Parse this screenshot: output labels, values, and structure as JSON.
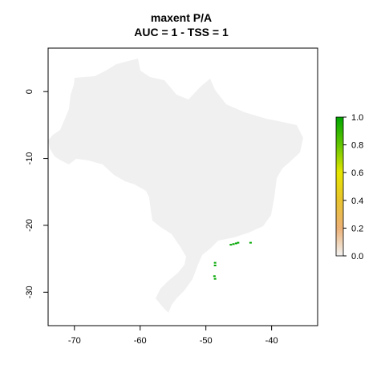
{
  "title": {
    "line1": "maxent P/A",
    "line2": "AUC = 1 - TSS = 1"
  },
  "map": {
    "x_range": [
      -74,
      -33
    ],
    "y_range": [
      -35,
      6.5
    ],
    "x_ticks": [
      -70,
      -60,
      -50,
      -40
    ],
    "y_ticks": [
      0,
      -10,
      -20,
      -30
    ],
    "x_tick_labels": [
      "-70",
      "-60",
      "-50",
      "-40"
    ],
    "y_tick_labels": [
      "0",
      "-10",
      "-20",
      "-30"
    ],
    "country_fill": "#f0f0f0",
    "presence_color": "#00a600",
    "presence_cells": [
      [
        -46.2,
        -22.9
      ],
      [
        -45.8,
        -22.8
      ],
      [
        -45.4,
        -22.7
      ],
      [
        -45.1,
        -22.6
      ],
      [
        -43.2,
        -22.6
      ],
      [
        -48.6,
        -25.6
      ],
      [
        -48.6,
        -26.0
      ],
      [
        -48.7,
        -27.6
      ],
      [
        -48.6,
        -28.0
      ]
    ]
  },
  "legend": {
    "ticks": [
      "1.0",
      "0.8",
      "0.6",
      "0.4",
      "0.2",
      "0.0"
    ],
    "gradient_top_to_bottom": [
      "#00a600",
      "#63c600",
      "#e6e600",
      "#e8c32e",
      "#ecb176",
      "#f2f2f2"
    ]
  }
}
